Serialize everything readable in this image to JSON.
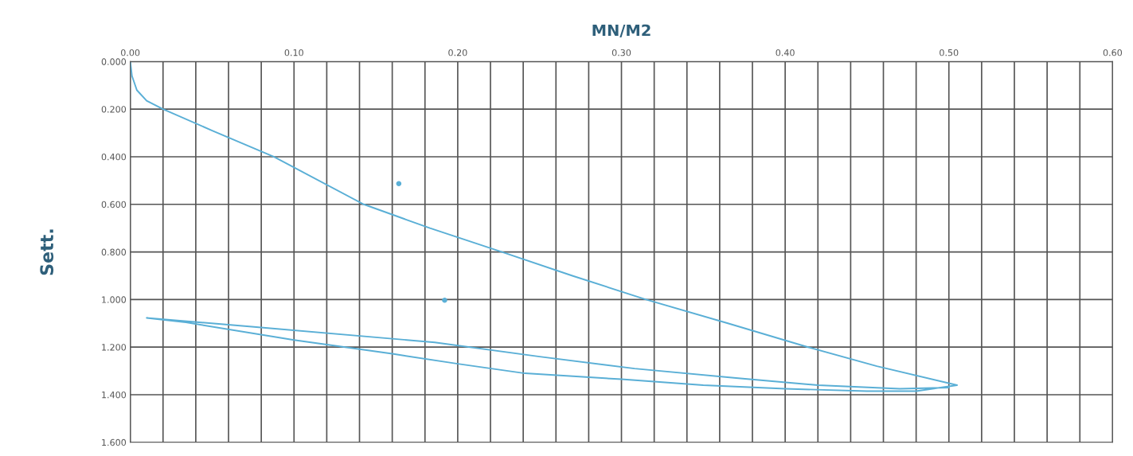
{
  "chart_data": {
    "type": "line",
    "xlabel": "MN/M2",
    "ylabel": "Sett.",
    "series": [
      {
        "color": "#5aafd6",
        "x": [
          0,
          0.001,
          0.004,
          0.01,
          0.02,
          0.05,
          0.0876,
          0.1426,
          0.183,
          0.227,
          0.27,
          0.315,
          0.365,
          0.414,
          0.456,
          0.505,
          0.48,
          0.45,
          0.4,
          0.35,
          0.3,
          0.241,
          0.2,
          0.16,
          0.1,
          0.034,
          0.01,
          0.077,
          0.186,
          0.25,
          0.308,
          0.37,
          0.42,
          0.47,
          0.5
        ],
        "values": [
          0,
          0.06,
          0.12,
          0.165,
          0.2,
          0.29,
          0.4,
          0.6,
          0.7,
          0.8,
          0.9,
          1.0,
          1.1,
          1.2,
          1.28,
          1.36,
          1.385,
          1.385,
          1.375,
          1.36,
          1.335,
          1.31,
          1.27,
          1.228,
          1.17,
          1.096,
          1.077,
          1.116,
          1.18,
          1.24,
          1.29,
          1.33,
          1.36,
          1.375,
          1.37
        ]
      },
      {
        "type": "scatter",
        "color": "#5aafd6",
        "x": [
          0.164,
          0.192
        ],
        "values": [
          0.513,
          1.003
        ]
      }
    ],
    "marker": "none",
    "line_style": "solid",
    "xlim": [
      0,
      0.6
    ],
    "xticks": [
      {
        "value": 0,
        "label": "0.00"
      },
      {
        "value": 0.02,
        "label": null
      },
      {
        "value": 0.04,
        "label": null
      },
      {
        "value": 0.06,
        "label": null
      },
      {
        "value": 0.08,
        "label": null
      },
      {
        "value": 0.1,
        "label": "0.10"
      },
      {
        "value": 0.12,
        "label": null
      },
      {
        "value": 0.14,
        "label": null
      },
      {
        "value": 0.16,
        "label": null
      },
      {
        "value": 0.18,
        "label": null
      },
      {
        "value": 0.2,
        "label": "0.20"
      },
      {
        "value": 0.22,
        "label": null
      },
      {
        "value": 0.24,
        "label": null
      },
      {
        "value": 0.26,
        "label": null
      },
      {
        "value": 0.28,
        "label": null
      },
      {
        "value": 0.3,
        "label": "0.30"
      },
      {
        "value": 0.32,
        "label": null
      },
      {
        "value": 0.34,
        "label": null
      },
      {
        "value": 0.36,
        "label": null
      },
      {
        "value": 0.38,
        "label": null
      },
      {
        "value": 0.4,
        "label": "0.40"
      },
      {
        "value": 0.42,
        "label": null
      },
      {
        "value": 0.44,
        "label": null
      },
      {
        "value": 0.46,
        "label": null
      },
      {
        "value": 0.48,
        "label": null
      },
      {
        "value": 0.5,
        "label": "0.50"
      },
      {
        "value": 0.52,
        "label": null
      },
      {
        "value": 0.54,
        "label": null
      },
      {
        "value": 0.56,
        "label": null
      },
      {
        "value": 0.58,
        "label": null
      },
      {
        "value": 0.6,
        "label": "0.60"
      }
    ],
    "ylim": [
      1.6,
      0
    ],
    "yticks": [
      {
        "value": 0,
        "label": "0.000"
      },
      {
        "value": 0.2,
        "label": "0.200"
      },
      {
        "value": 0.4,
        "label": "0.400"
      },
      {
        "value": 0.6,
        "label": "0.600"
      },
      {
        "value": 0.8,
        "label": "0.800"
      },
      {
        "value": 1.0,
        "label": "1.000"
      },
      {
        "value": 1.2,
        "label": "1.200"
      },
      {
        "value": 1.4,
        "label": "1.400"
      },
      {
        "value": 1.6,
        "label": "1.600"
      }
    ],
    "grid": true
  }
}
